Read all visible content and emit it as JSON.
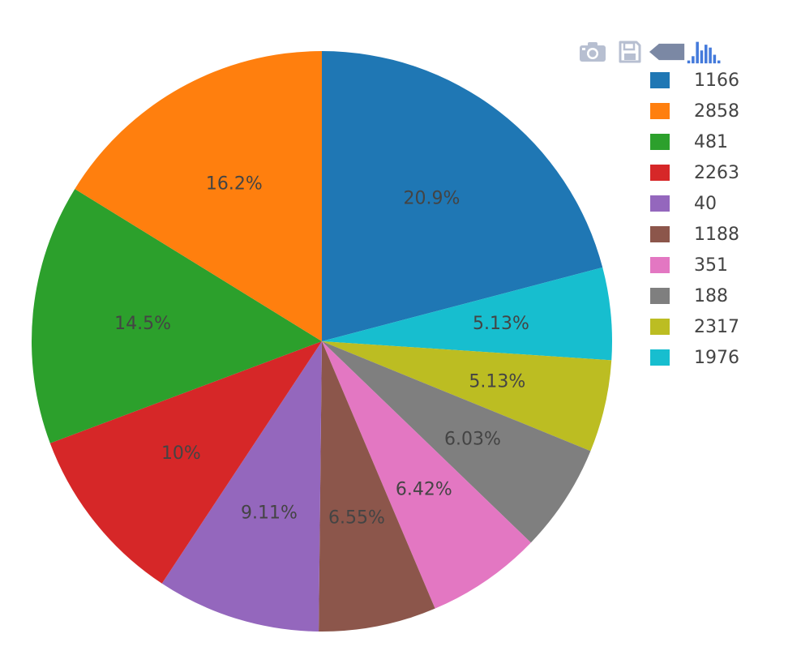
{
  "modebar": {
    "buttons": [
      {
        "icon": "camera-icon",
        "color": "#b7bfd1"
      },
      {
        "icon": "save-icon",
        "color": "#b7bfd1"
      },
      {
        "icon": "back-arrow-icon",
        "color": "#7b88a4"
      },
      {
        "icon": "bar-chart-logo-icon",
        "color": "#447adb"
      }
    ]
  },
  "chart_data": {
    "type": "pie",
    "title": "",
    "direction": "clockwise",
    "start_angle": "12 o'clock",
    "legend_position": "top-right",
    "slices": [
      {
        "label": "1166",
        "percent": 20.9,
        "text": "20.9%",
        "color": "#1f77b4"
      },
      {
        "label": "1976",
        "percent": 5.13,
        "text": "5.13%",
        "color": "#17becf"
      },
      {
        "label": "2317",
        "percent": 5.13,
        "text": "5.13%",
        "color": "#bcbd22"
      },
      {
        "label": "188",
        "percent": 6.03,
        "text": "6.03%",
        "color": "#7f7f7f"
      },
      {
        "label": "351",
        "percent": 6.42,
        "text": "6.42%",
        "color": "#e377c2"
      },
      {
        "label": "1188",
        "percent": 6.55,
        "text": "6.55%",
        "color": "#8c564b"
      },
      {
        "label": "40",
        "percent": 9.11,
        "text": "9.11%",
        "color": "#9467bd"
      },
      {
        "label": "2263",
        "percent": 10.0,
        "text": "10%",
        "color": "#d62728"
      },
      {
        "label": "481",
        "percent": 14.5,
        "text": "14.5%",
        "color": "#2ca02c"
      },
      {
        "label": "2858",
        "percent": 16.2,
        "text": "16.2%",
        "color": "#ff7f0e"
      }
    ],
    "legend": [
      {
        "label": "1166",
        "color": "#1f77b4"
      },
      {
        "label": "2858",
        "color": "#ff7f0e"
      },
      {
        "label": "481",
        "color": "#2ca02c"
      },
      {
        "label": "2263",
        "color": "#d62728"
      },
      {
        "label": "40",
        "color": "#9467bd"
      },
      {
        "label": "1188",
        "color": "#8c564b"
      },
      {
        "label": "351",
        "color": "#e377c2"
      },
      {
        "label": "188",
        "color": "#7f7f7f"
      },
      {
        "label": "2317",
        "color": "#bcbd22"
      },
      {
        "label": "1976",
        "color": "#17becf"
      }
    ]
  }
}
